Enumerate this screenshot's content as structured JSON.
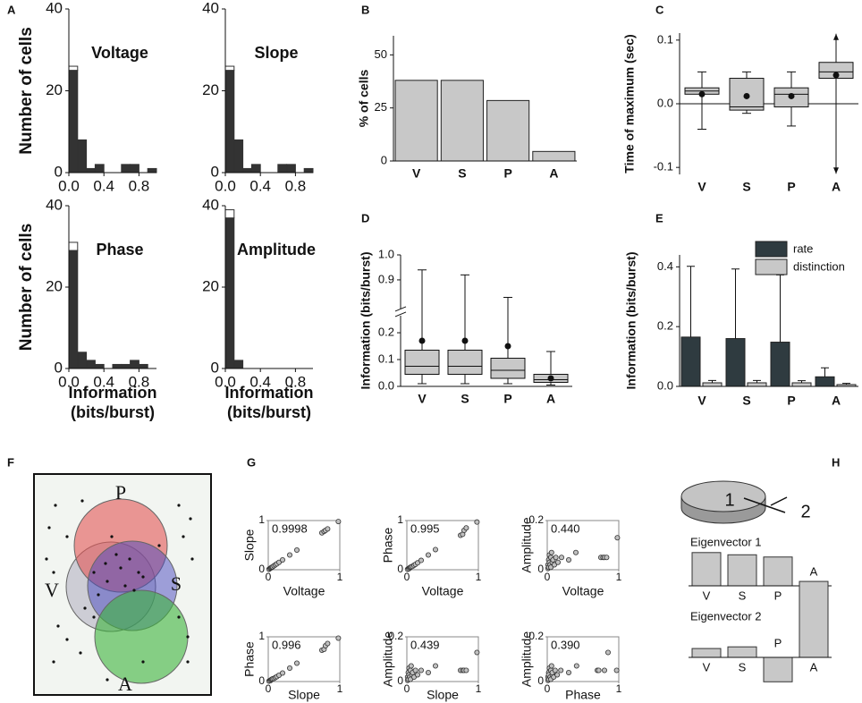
{
  "panel_labels": [
    "A",
    "B",
    "C",
    "D",
    "E",
    "F",
    "G",
    "H"
  ],
  "venn": {
    "labels": [
      "P",
      "V",
      "S",
      "A"
    ]
  },
  "disk": {
    "labels": [
      "1",
      "2"
    ]
  },
  "chart_data": [
    {
      "type": "histogram",
      "title": "Voltage",
      "ylabel": "Number of cells",
      "bins": [
        0,
        0.1,
        0.2,
        0.3,
        0.4,
        0.5,
        0.6,
        0.7,
        0.8,
        0.9,
        1.0
      ],
      "series": [
        {
          "color": "#333333",
          "values": [
            25,
            8,
            1,
            2,
            0,
            0,
            2,
            2,
            0,
            1
          ]
        },
        {
          "color": "#ffffff",
          "values": [
            1,
            0,
            0,
            0,
            0,
            0,
            0,
            0,
            0,
            0
          ]
        }
      ],
      "xlim": [
        0,
        1
      ],
      "xticks": [
        {
          "value": 0,
          "label": "0.0"
        },
        0.4,
        0.8
      ],
      "ylim": [
        0,
        40
      ],
      "yticks": [
        0,
        20,
        40
      ]
    },
    {
      "type": "histogram",
      "title": "Slope",
      "bins": [
        0,
        0.1,
        0.2,
        0.3,
        0.4,
        0.5,
        0.6,
        0.7,
        0.8,
        0.9,
        1.0
      ],
      "series": [
        {
          "color": "#333333",
          "values": [
            25,
            8,
            1,
            2,
            0,
            0,
            2,
            2,
            0,
            1
          ]
        },
        {
          "color": "#ffffff",
          "values": [
            1,
            0,
            0,
            0,
            0,
            0,
            0,
            0,
            0,
            0
          ]
        }
      ],
      "xlim": [
        0,
        1
      ],
      "xticks": [
        {
          "value": 0,
          "label": "0.0"
        },
        0.4,
        0.8
      ],
      "ylim": [
        0,
        40
      ],
      "yticks": [
        0,
        20,
        40
      ]
    },
    {
      "type": "histogram",
      "title": "Phase",
      "ylabel": "Number of cells",
      "xlabel": "Information (bits/burst)",
      "bins": [
        0,
        0.1,
        0.2,
        0.3,
        0.4,
        0.5,
        0.6,
        0.7,
        0.8,
        0.9,
        1.0
      ],
      "series": [
        {
          "color": "#333333",
          "values": [
            29,
            4,
            2,
            1,
            0,
            1,
            1,
            2,
            1,
            0
          ]
        },
        {
          "color": "#ffffff",
          "values": [
            2,
            0,
            0,
            0,
            0,
            0,
            0,
            0,
            0,
            0
          ]
        }
      ],
      "xlim": [
        0,
        1
      ],
      "xticks": [
        {
          "value": 0,
          "label": "0.0"
        },
        0.4,
        0.8
      ],
      "ylim": [
        0,
        40
      ],
      "yticks": [
        0,
        20,
        40
      ]
    },
    {
      "type": "histogram",
      "title": "Amplitude",
      "xlabel": "Information (bits/burst)",
      "bins": [
        0,
        0.1,
        0.2,
        0.3,
        0.4,
        0.5,
        0.6,
        0.7,
        0.8,
        0.9,
        1.0
      ],
      "series": [
        {
          "color": "#333333",
          "values": [
            37,
            2,
            0,
            0,
            0,
            0,
            0,
            0,
            0,
            0
          ]
        },
        {
          "color": "#ffffff",
          "values": [
            2,
            0,
            0,
            0,
            0,
            0,
            0,
            0,
            0,
            0
          ]
        }
      ],
      "xlim": [
        0,
        1
      ],
      "xticks": [
        {
          "value": 0,
          "label": "0.0"
        },
        0.4,
        0.8
      ],
      "ylim": [
        0,
        40
      ],
      "yticks": [
        0,
        20,
        40
      ]
    },
    {
      "type": "bar",
      "ylabel": "% of cells",
      "categories": [
        "V",
        "S",
        "P",
        "A"
      ],
      "values": [
        38,
        38,
        28.5,
        4.5
      ],
      "color": "#c8c8c8",
      "ylim": [
        0,
        59
      ],
      "yticks": [
        0,
        25,
        50
      ]
    },
    {
      "type": "box",
      "ylabel": "Time of maximum (sec)",
      "categories": [
        "V",
        "S",
        "P",
        "A"
      ],
      "color": "#c8c8c8",
      "boxes": [
        {
          "low": -0.04,
          "q1": 0.015,
          "median": 0.02,
          "q3": 0.025,
          "high": 0.05,
          "mean": 0.015
        },
        {
          "low": -0.015,
          "q1": -0.01,
          "median": -0.005,
          "q3": 0.04,
          "high": 0.05,
          "mean": 0.012
        },
        {
          "low": -0.035,
          "q1": -0.005,
          "median": 0.015,
          "q3": 0.025,
          "high": 0.05,
          "mean": 0.012
        },
        {
          "low": -0.11,
          "q1": 0.04,
          "median": 0.05,
          "q3": 0.065,
          "high": 0.11,
          "mean": 0.045,
          "arrows": true
        }
      ],
      "ylim": [
        -0.111,
        0.111
      ],
      "yticks": [
        -0.1,
        {
          "value": 0,
          "label": "0.0"
        },
        0.1
      ],
      "hline": 0
    },
    {
      "type": "box",
      "ylabel": "Information (bits/burst)",
      "categories": [
        "V",
        "S",
        "P",
        "A"
      ],
      "color": "#c8c8c8",
      "boxes": [
        {
          "low": 0.01,
          "q1": 0.045,
          "median": 0.075,
          "q3": 0.135,
          "high": 0.94,
          "mean": 0.17
        },
        {
          "low": 0.01,
          "q1": 0.045,
          "median": 0.075,
          "q3": 0.135,
          "high": 0.92,
          "mean": 0.17
        },
        {
          "low": 0.01,
          "q1": 0.03,
          "median": 0.06,
          "q3": 0.105,
          "high": 0.83,
          "mean": 0.15
        },
        {
          "low": 0.005,
          "q1": 0.015,
          "median": 0.025,
          "q3": 0.045,
          "high": 0.13,
          "mean": 0.03
        }
      ],
      "ylim": [
        0,
        1.0
      ],
      "ybreak": [
        0.25,
        0.8
      ],
      "yticks": [
        {
          "value": 0,
          "label": "0.0"
        },
        0.1,
        0.2,
        0.9,
        {
          "value": 1.0,
          "label": "1.0"
        }
      ]
    },
    {
      "type": "grouped_bar",
      "ylabel": "Information (bits/burst)",
      "categories": [
        "V",
        "S",
        "P",
        "A"
      ],
      "series": [
        {
          "name": "rate",
          "color": "#2f3b40",
          "values": [
            0.165,
            0.16,
            0.148,
            0.032
          ],
          "errors": [
            0.237,
            0.233,
            0.225,
            0.03
          ]
        },
        {
          "name": "distinction",
          "color": "#c8c8c8",
          "values": [
            0.012,
            0.012,
            0.012,
            0.006
          ],
          "errors": [
            0.008,
            0.008,
            0.007,
            0.004
          ]
        }
      ],
      "ylim": [
        0,
        0.44
      ],
      "yticks": [
        {
          "value": 0,
          "label": "0.0"
        },
        0.2,
        0.4
      ],
      "legend": "upper right"
    },
    {
      "type": "scatter",
      "annotation": "0.9998",
      "xlabel": "Voltage",
      "ylabel": "Slope",
      "color": "#c0c0c0",
      "x": [
        0.01,
        0.02,
        0.03,
        0.04,
        0.05,
        0.06,
        0.08,
        0.1,
        0.12,
        0.15,
        0.2,
        0.3,
        0.4,
        0.75,
        0.78,
        0.8,
        0.83,
        0.98
      ],
      "y": [
        0.01,
        0.02,
        0.03,
        0.04,
        0.05,
        0.06,
        0.08,
        0.1,
        0.12,
        0.15,
        0.2,
        0.3,
        0.4,
        0.75,
        0.78,
        0.8,
        0.83,
        0.98
      ],
      "xlim": [
        0,
        1
      ],
      "ylim": [
        0,
        1
      ],
      "xticks": [
        0,
        1
      ],
      "yticks": [
        0,
        1
      ]
    },
    {
      "type": "scatter",
      "annotation": "0.995",
      "xlabel": "Voltage",
      "ylabel": "Phase",
      "color": "#c0c0c0",
      "x": [
        0.01,
        0.02,
        0.03,
        0.04,
        0.05,
        0.06,
        0.08,
        0.1,
        0.12,
        0.15,
        0.2,
        0.3,
        0.4,
        0.75,
        0.78,
        0.8,
        0.83,
        0.98
      ],
      "y": [
        0.01,
        0.02,
        0.02,
        0.04,
        0.05,
        0.06,
        0.07,
        0.09,
        0.11,
        0.14,
        0.19,
        0.3,
        0.41,
        0.7,
        0.72,
        0.8,
        0.85,
        0.97
      ],
      "xlim": [
        0,
        1
      ],
      "ylim": [
        0,
        1
      ],
      "xticks": [
        0,
        1
      ],
      "yticks": [
        0,
        1
      ]
    },
    {
      "type": "scatter",
      "annotation": "0.440",
      "xlabel": "Voltage",
      "ylabel": "Amplitude",
      "color": "#c0c0c0",
      "x": [
        0.01,
        0.01,
        0.02,
        0.02,
        0.03,
        0.03,
        0.04,
        0.05,
        0.05,
        0.06,
        0.07,
        0.08,
        0.1,
        0.12,
        0.15,
        0.2,
        0.3,
        0.4,
        0.75,
        0.78,
        0.8,
        0.83,
        0.98
      ],
      "y": [
        0.005,
        0.02,
        0.01,
        0.04,
        0.03,
        0.06,
        0.02,
        0.05,
        0.01,
        0.07,
        0.03,
        0.04,
        0.02,
        0.05,
        0.03,
        0.05,
        0.04,
        0.07,
        0.05,
        0.05,
        0.05,
        0.05,
        0.13
      ],
      "xlim": [
        0,
        1
      ],
      "ylim": [
        0,
        0.2
      ],
      "xticks": [
        0,
        1
      ],
      "yticks": [
        0,
        0.2
      ]
    },
    {
      "type": "scatter",
      "annotation": "0.996",
      "xlabel": "Slope",
      "ylabel": "Phase",
      "color": "#c0c0c0",
      "x": [
        0.01,
        0.02,
        0.03,
        0.04,
        0.05,
        0.06,
        0.08,
        0.1,
        0.12,
        0.15,
        0.2,
        0.3,
        0.4,
        0.75,
        0.78,
        0.8,
        0.83,
        0.98
      ],
      "y": [
        0.01,
        0.02,
        0.02,
        0.04,
        0.05,
        0.06,
        0.07,
        0.09,
        0.11,
        0.14,
        0.19,
        0.3,
        0.41,
        0.7,
        0.72,
        0.8,
        0.85,
        0.97
      ],
      "xlim": [
        0,
        1
      ],
      "ylim": [
        0,
        1
      ],
      "xticks": [
        0,
        1
      ],
      "yticks": [
        0,
        1
      ]
    },
    {
      "type": "scatter",
      "annotation": "0.439",
      "xlabel": "Slope",
      "ylabel": "Amplitude",
      "color": "#c0c0c0",
      "x": [
        0.01,
        0.01,
        0.02,
        0.02,
        0.03,
        0.03,
        0.04,
        0.05,
        0.05,
        0.06,
        0.07,
        0.08,
        0.1,
        0.12,
        0.15,
        0.2,
        0.3,
        0.4,
        0.75,
        0.78,
        0.8,
        0.83,
        0.98
      ],
      "y": [
        0.005,
        0.02,
        0.01,
        0.04,
        0.03,
        0.06,
        0.02,
        0.05,
        0.01,
        0.07,
        0.03,
        0.04,
        0.02,
        0.05,
        0.03,
        0.05,
        0.04,
        0.07,
        0.05,
        0.05,
        0.05,
        0.05,
        0.13
      ],
      "xlim": [
        0,
        1
      ],
      "ylim": [
        0,
        0.2
      ],
      "xticks": [
        0,
        1
      ],
      "yticks": [
        0,
        0.2
      ]
    },
    {
      "type": "scatter",
      "annotation": "0.390",
      "xlabel": "Phase",
      "ylabel": "Amplitude",
      "color": "#c0c0c0",
      "x": [
        0.01,
        0.01,
        0.02,
        0.02,
        0.02,
        0.03,
        0.04,
        0.05,
        0.05,
        0.06,
        0.07,
        0.07,
        0.09,
        0.11,
        0.14,
        0.19,
        0.3,
        0.41,
        0.7,
        0.72,
        0.8,
        0.85,
        0.97
      ],
      "y": [
        0.005,
        0.02,
        0.01,
        0.04,
        0.03,
        0.06,
        0.02,
        0.05,
        0.01,
        0.07,
        0.03,
        0.04,
        0.02,
        0.05,
        0.03,
        0.05,
        0.04,
        0.07,
        0.05,
        0.05,
        0.05,
        0.13,
        0.05
      ],
      "xlim": [
        0,
        1
      ],
      "ylim": [
        0,
        0.2
      ],
      "xticks": [
        0,
        1
      ],
      "yticks": [
        0,
        0.2
      ]
    },
    {
      "type": "bar",
      "title": "Eigenvector 1",
      "categories": [
        "V",
        "S",
        "P",
        "A"
      ],
      "values": [
        0.6,
        0.56,
        0.52,
        -0.02
      ],
      "color": "#c8c8c8"
    },
    {
      "type": "bar",
      "title": "Eigenvector 2",
      "categories": [
        "V",
        "S",
        "P",
        "A"
      ],
      "values": [
        0.16,
        0.19,
        -0.44,
        1.37
      ],
      "color": "#c8c8c8"
    }
  ]
}
